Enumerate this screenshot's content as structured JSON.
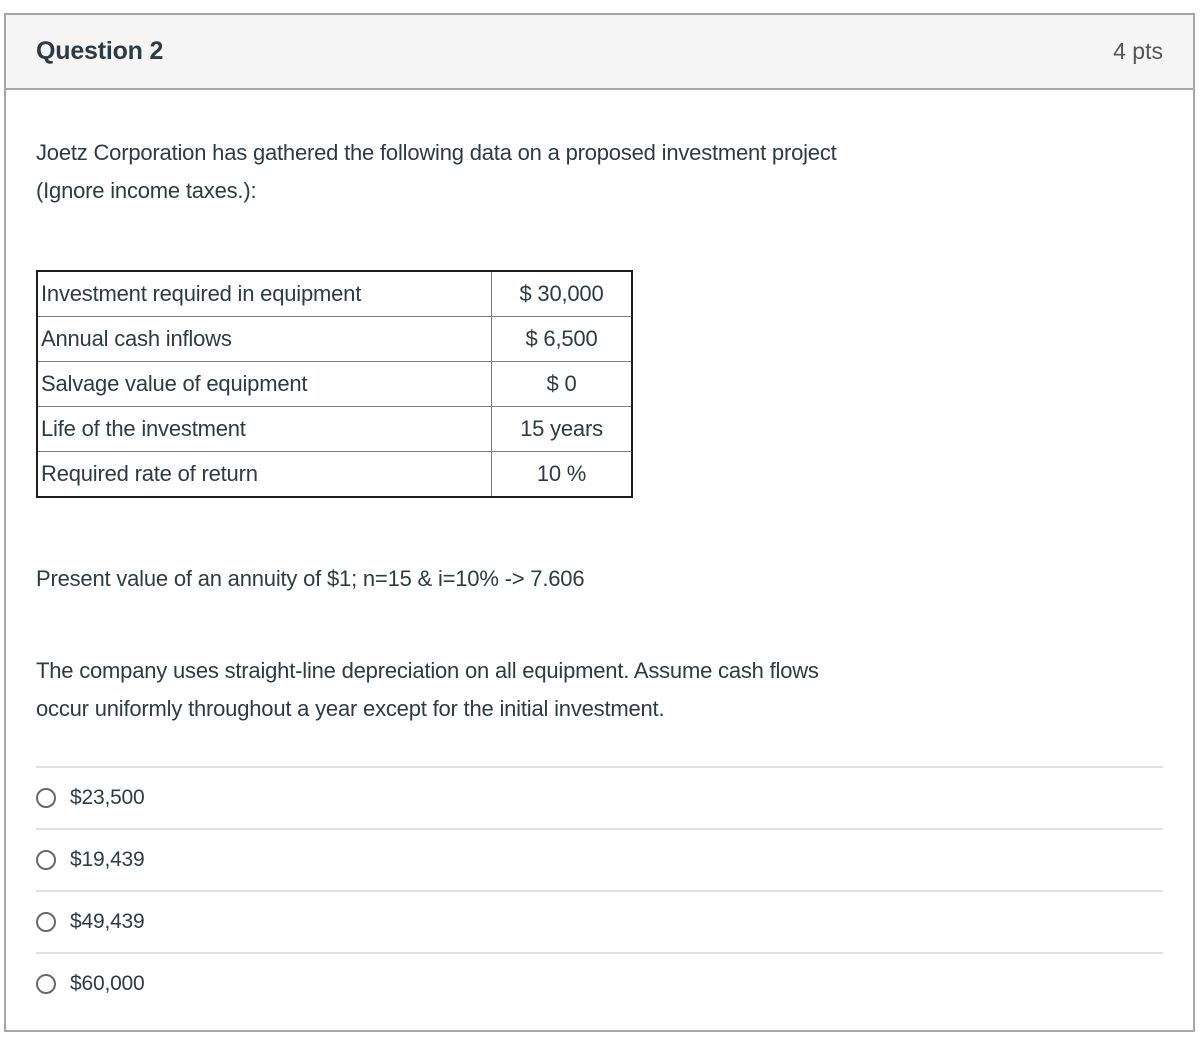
{
  "header": {
    "title": "Question 2",
    "points": "4 pts"
  },
  "body": {
    "intro": {
      "line1": "Joetz Corporation has gathered the following data on a proposed investment project",
      "line2": "(Ignore income taxes.):"
    },
    "table": {
      "rows": [
        {
          "label": "Investment required in equipment",
          "value": "$ 30,000"
        },
        {
          "label": "Annual cash inflows",
          "value": "$ 6,500"
        },
        {
          "label": "Salvage value of equipment",
          "value": "$ 0"
        },
        {
          "label": "Life of the investment",
          "value": "15 years"
        },
        {
          "label": "Required rate of return",
          "value": "10 %"
        }
      ]
    },
    "pv_note": "Present value of an annuity of $1; n=15 & i=10% -> 7.606",
    "note": {
      "line1": "The company uses straight-line depreciation on all equipment. Assume cash flows",
      "line2": "occur uniformly throughout a year except for the initial investment."
    }
  },
  "options": [
    {
      "label": "$23,500",
      "selected": false
    },
    {
      "label": "$19,439",
      "selected": false
    },
    {
      "label": "$49,439",
      "selected": false
    },
    {
      "label": "$60,000",
      "selected": false
    }
  ],
  "colors": {
    "text": "#2D3B45",
    "points_text": "#565656",
    "header_background": "#f5f5f5",
    "card_border": "#a6a6a6",
    "table_outer_border": "#1e1e1e",
    "table_inner_border": "#7d7d7d",
    "option_divider": "#e0e0e0",
    "radio_border": "#696969"
  }
}
